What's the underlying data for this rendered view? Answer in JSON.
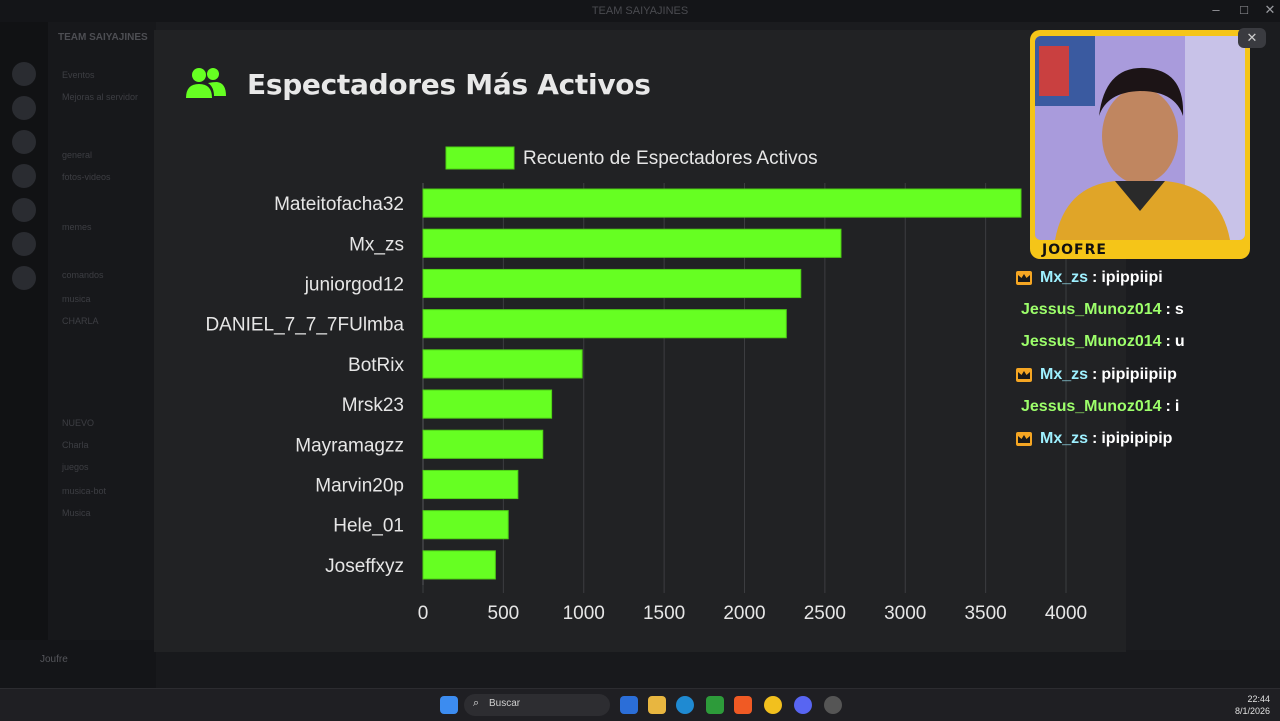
{
  "window": {
    "title": "TEAM SAIYAJINES"
  },
  "sidebar": {
    "server_name": "TEAM SAIYAJINES",
    "channels": [
      "Eventos",
      "Mejoras al servidor",
      "general",
      "fotos-videos",
      "memes",
      "comandos",
      "musica",
      "CHARLA",
      "NUEVO",
      "Charla",
      "juegos",
      "musica-bot",
      "Musica"
    ],
    "user": "Joufre"
  },
  "chart_title": "Espectadores Más Activos",
  "chart_data": {
    "type": "bar",
    "orientation": "horizontal",
    "title": "Espectadores Más Activos",
    "categories": [
      "Mateitofacha32",
      "Mx_zs",
      "juniorgod12",
      "DANIEL_7_7_7FUlmba",
      "BotRix",
      "Mrsk23",
      "Mayramagzz",
      "Marvin20p",
      "Hele_01",
      "Joseffxyz"
    ],
    "series": [
      {
        "name": "Recuento de Espectadores Activos",
        "values": [
          3720,
          2600,
          2350,
          2260,
          990,
          800,
          745,
          590,
          530,
          450
        ],
        "color": "#66ff22"
      }
    ],
    "xlim": [
      0,
      4000
    ],
    "x_ticks": [
      "0",
      "500",
      "1000",
      "1500",
      "2000",
      "2500",
      "3000",
      "3500",
      "4000"
    ],
    "grid": true,
    "legend_position": "top"
  },
  "webcam": {
    "label": "JOOFRE"
  },
  "chat": [
    {
      "user": "Mx_zs",
      "text": "ipippiipi",
      "badge": "crown",
      "color": "#9ef0ff"
    },
    {
      "user": "Jessus_Munoz014",
      "text": "s",
      "badge": "",
      "color": "#9dff6b"
    },
    {
      "user": "Jessus_Munoz014",
      "text": "u",
      "badge": "",
      "color": "#9dff6b"
    },
    {
      "user": "Mx_zs",
      "text": "pipipiipiip",
      "badge": "crown",
      "color": "#9ef0ff"
    },
    {
      "user": "Jessus_Munoz014",
      "text": "i",
      "badge": "",
      "color": "#9dff6b"
    },
    {
      "user": "Mx_zs",
      "text": "ipipipipip",
      "badge": "crown",
      "color": "#9ef0ff"
    }
  ],
  "taskbar": {
    "search_label": "Buscar",
    "time": "22:44",
    "date": "8/1/2026"
  },
  "colors": {
    "accent": "#66ff22",
    "panel": "#212224",
    "cam_border": "#f5c518"
  }
}
